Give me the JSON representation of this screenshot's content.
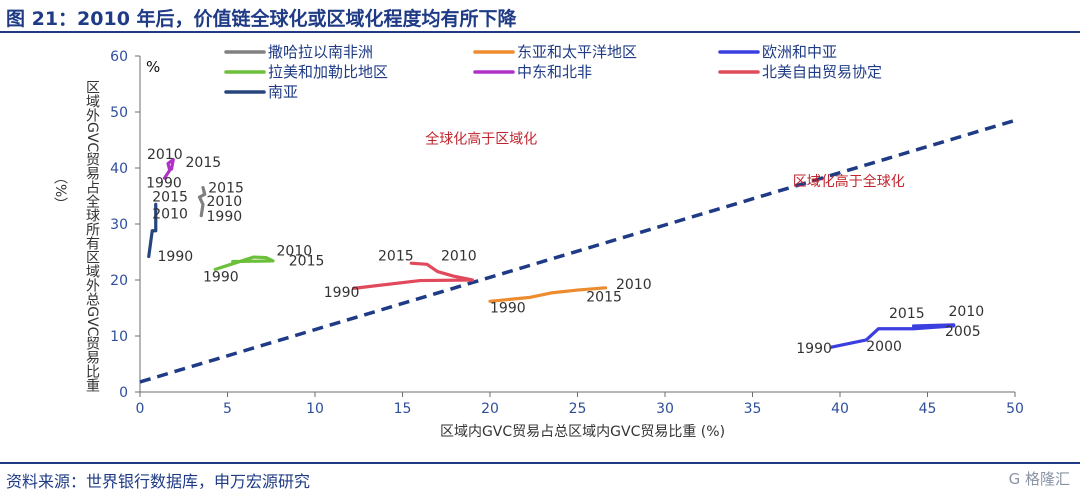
{
  "title": "图 21：2010 年后，价值链全球化或区域化程度均有所下降",
  "source": "资料来源：世界银行数据库，申万宏源研究",
  "watermark": "G 格隆汇",
  "chart_data": {
    "type": "line",
    "unit_label": "%",
    "xlabel": "区域内GVC贸易占总区域内GVC贸易比重 (%)",
    "ylabel": "区域外GVC贸易占全球所有区域外总GVC贸易比重 （%）",
    "xlim": [
      0,
      50
    ],
    "ylim": [
      0,
      60
    ],
    "xticks": [
      0,
      5,
      10,
      15,
      20,
      25,
      30,
      35,
      40,
      45,
      50
    ],
    "yticks": [
      0,
      10,
      20,
      30,
      40,
      50,
      60
    ],
    "annotations": [
      "全球化高于区域化",
      "区域化高于全球化"
    ],
    "reference_line": {
      "x": [
        0,
        50
      ],
      "y": [
        1.8,
        48.5
      ]
    },
    "series": [
      {
        "name": "撒哈拉以南非洲",
        "color": "#808080",
        "points": [
          [
            3.5,
            31.5
          ],
          [
            3.6,
            33.5
          ],
          [
            3.4,
            34.8
          ],
          [
            3.7,
            35.3
          ],
          [
            3.6,
            36.5
          ]
        ],
        "labels": [
          [
            "1990",
            3.8,
            30.5
          ],
          [
            "2010",
            3.8,
            33.2
          ],
          [
            "2015",
            3.9,
            35.6
          ]
        ]
      },
      {
        "name": "东亚和太平洋地区",
        "color": "#ed8b2f",
        "points": [
          [
            20,
            16.2
          ],
          [
            22.3,
            16.9
          ],
          [
            23.5,
            17.7
          ],
          [
            25,
            18.2
          ],
          [
            26.6,
            18.6
          ]
        ],
        "labels": [
          [
            "1990",
            20,
            14.2
          ],
          [
            "2015",
            25.5,
            16.2
          ],
          [
            "2010",
            27.2,
            18.4
          ]
        ]
      },
      {
        "name": "欧洲和中亚",
        "color": "#3b3ee0",
        "points": [
          [
            39.5,
            8.0
          ],
          [
            41.5,
            9.3
          ],
          [
            42.2,
            11.3
          ],
          [
            44.2,
            11.3
          ],
          [
            46.5,
            11.8
          ],
          [
            44.2,
            11.8
          ],
          [
            46.5,
            12.0
          ]
        ],
        "labels": [
          [
            "1990",
            37.5,
            7.0
          ],
          [
            "2000",
            41.5,
            7.3
          ],
          [
            "2015",
            42.8,
            13.2
          ],
          [
            "2010",
            46.2,
            13.6
          ],
          [
            "2005",
            46.0,
            10.0
          ]
        ]
      },
      {
        "name": "拉美和加勒比地区",
        "color": "#6cbf3a",
        "points": [
          [
            4.3,
            21.9
          ],
          [
            5.2,
            22.8
          ],
          [
            6.5,
            24.1
          ],
          [
            7.2,
            24.0
          ],
          [
            7.6,
            23.4
          ],
          [
            5.3,
            23.3
          ]
        ],
        "labels": [
          [
            "1990",
            3.6,
            19.7
          ],
          [
            "2010",
            7.8,
            24.4
          ],
          [
            "2015",
            8.5,
            22.6
          ]
        ]
      },
      {
        "name": "中东和北非",
        "color": "#b030c8",
        "points": [
          [
            1.4,
            38.2
          ],
          [
            1.7,
            39.6
          ],
          [
            1.6,
            40.8
          ],
          [
            1.9,
            41.5
          ],
          [
            1.8,
            39.8
          ]
        ],
        "labels": [
          [
            "2010",
            0.4,
            41.6
          ],
          [
            "2015",
            2.6,
            40.2
          ]
        ]
      },
      {
        "name": "北美自由贸易协定",
        "color": "#e04a5c",
        "points": [
          [
            12.2,
            18.5
          ],
          [
            16.0,
            19.9
          ],
          [
            19.0,
            20.0
          ],
          [
            17.9,
            20.7
          ],
          [
            17.0,
            21.5
          ],
          [
            16.4,
            22.8
          ],
          [
            15.5,
            23.0
          ]
        ],
        "labels": [
          [
            "1990",
            10.5,
            17.0
          ],
          [
            "2015",
            13.6,
            23.5
          ],
          [
            "2010",
            17.2,
            23.5
          ]
        ]
      },
      {
        "name": "南亚",
        "color": "#26457c",
        "points": [
          [
            0.5,
            24.2
          ],
          [
            0.7,
            28.8
          ],
          [
            0.9,
            28.8
          ],
          [
            0.9,
            33.5
          ]
        ],
        "labels": [
          [
            "1990",
            1.0,
            23.4
          ],
          [
            "1990",
            0.35,
            36.5
          ],
          [
            "2015",
            0.7,
            34.0
          ],
          [
            "2010",
            0.7,
            31.0
          ]
        ]
      }
    ]
  }
}
